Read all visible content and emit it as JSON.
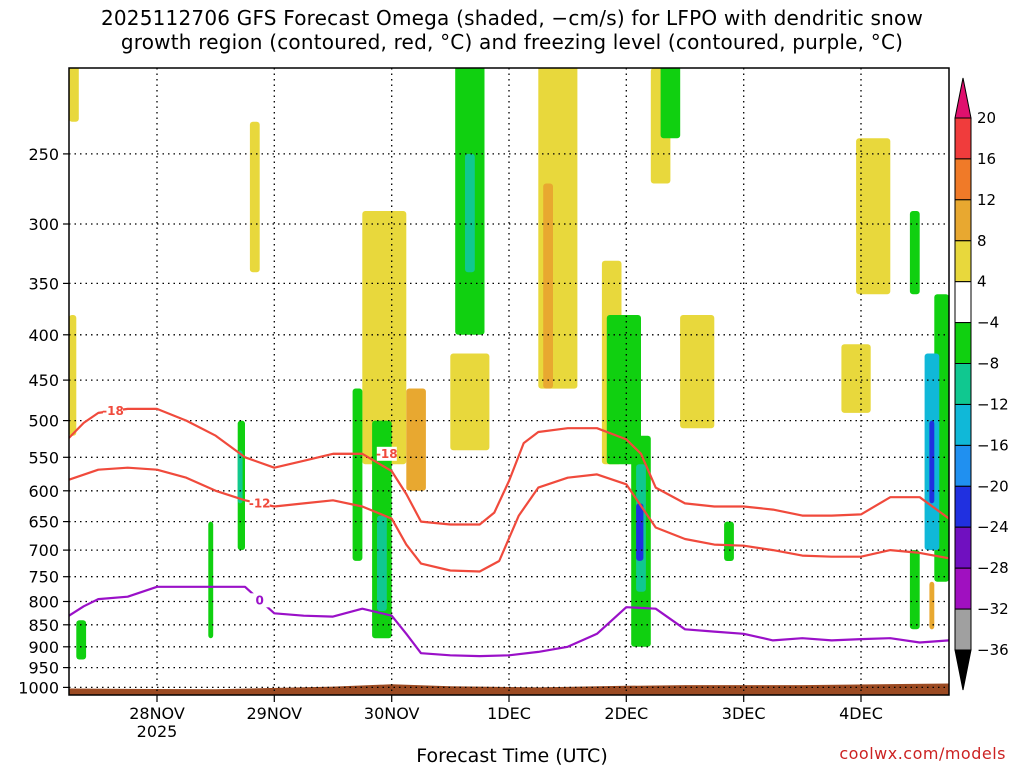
{
  "title_line1": "2025112706 GFS Forecast Omega (shaded, −cm/s) for LFPO with dendritic snow",
  "title_line2": "growth region (contoured, red, °C) and freezing level (contoured, purple, °C)",
  "credit": "coolwx.com/models",
  "colors": {
    "snow_contour": "#f04a3c",
    "freezing_contour": "#9a10c8",
    "ground": "#9b4a22",
    "grid": "#000000"
  },
  "chart_data": {
    "type": "heatmap",
    "title": "2025112706 GFS Forecast Omega (shaded, −cm/s) for LFPO with dendritic snow growth region (contoured, red, °C) and freezing level (contoured, purple, °C)",
    "xlabel": "Forecast Time (UTC)",
    "ylabel": "",
    "y_scale": "log",
    "y_reversed": true,
    "ylim": [
      1020,
      200
    ],
    "xlim": [
      "2025-11-27T06:00",
      "2025-12-04T18:00"
    ],
    "x_ticks": [
      {
        "time": "2025-11-28T00:00",
        "label": "28NOV",
        "sublabel": "2025"
      },
      {
        "time": "2025-11-29T00:00",
        "label": "29NOV"
      },
      {
        "time": "2025-11-30T00:00",
        "label": "30NOV"
      },
      {
        "time": "2025-12-01T00:00",
        "label": "1DEC"
      },
      {
        "time": "2025-12-02T00:00",
        "label": "2DEC"
      },
      {
        "time": "2025-12-03T00:00",
        "label": "3DEC"
      },
      {
        "time": "2025-12-04T00:00",
        "label": "4DEC"
      }
    ],
    "y_ticks": [
      250,
      300,
      350,
      400,
      450,
      500,
      550,
      600,
      650,
      700,
      750,
      800,
      850,
      900,
      950,
      1000
    ],
    "grid": "dotted",
    "colorbar": {
      "labels": [
        20,
        16,
        12,
        8,
        4,
        -4,
        -8,
        -12,
        -16,
        -20,
        -24,
        -28,
        -32,
        -36
      ],
      "bins": [
        {
          "range": [
            20,
            null
          ],
          "color": "#e0106e"
        },
        {
          "range": [
            16,
            20
          ],
          "color": "#f03c3c"
        },
        {
          "range": [
            12,
            16
          ],
          "color": "#f07a28"
        },
        {
          "range": [
            8,
            12
          ],
          "color": "#e8a830"
        },
        {
          "range": [
            4,
            8
          ],
          "color": "#e8d83c"
        },
        {
          "range": [
            -4,
            4
          ],
          "color": "#ffffff"
        },
        {
          "range": [
            -8,
            -4
          ],
          "color": "#10d010"
        },
        {
          "range": [
            -12,
            -8
          ],
          "color": "#10c890"
        },
        {
          "range": [
            -16,
            -12
          ],
          "color": "#10b8d8"
        },
        {
          "range": [
            -20,
            -16
          ],
          "color": "#2090f0"
        },
        {
          "range": [
            -24,
            -20
          ],
          "color": "#2030e0"
        },
        {
          "range": [
            -28,
            -24
          ],
          "color": "#7010c0"
        },
        {
          "range": [
            -32,
            -28
          ],
          "color": "#a010c0"
        },
        {
          "range": [
            -36,
            -32
          ],
          "color": "#a0a0a0"
        },
        {
          "range": [
            null,
            -36
          ],
          "color": "#000000"
        }
      ]
    },
    "omega_regions": [
      {
        "value": 5,
        "t0": "2025-11-27T06:00",
        "t1": "2025-11-27T07:30",
        "p0": 380,
        "p1": 520
      },
      {
        "value": 5,
        "t0": "2025-11-27T06:00",
        "t1": "2025-11-27T08:00",
        "p0": 195,
        "p1": 230
      },
      {
        "value": 5,
        "t0": "2025-11-28T19:00",
        "t1": "2025-11-28T21:00",
        "p0": 230,
        "p1": 340
      },
      {
        "value": 5,
        "t0": "2025-11-29T18:00",
        "t1": "2025-11-30T03:00",
        "p0": 290,
        "p1": 560
      },
      {
        "value": 10,
        "t0": "2025-11-30T03:00",
        "t1": "2025-11-30T07:00",
        "p0": 460,
        "p1": 600
      },
      {
        "value": 5,
        "t0": "2025-11-30T12:00",
        "t1": "2025-11-30T20:00",
        "p0": 420,
        "p1": 540
      },
      {
        "value": 5,
        "t0": "2025-12-01T06:00",
        "t1": "2025-12-01T14:00",
        "p0": 180,
        "p1": 460
      },
      {
        "value": 10,
        "t0": "2025-12-01T07:00",
        "t1": "2025-12-01T09:00",
        "p0": 270,
        "p1": 460
      },
      {
        "value": 5,
        "t0": "2025-12-01T19:00",
        "t1": "2025-12-01T23:00",
        "p0": 330,
        "p1": 560
      },
      {
        "value": 5,
        "t0": "2025-12-02T11:00",
        "t1": "2025-12-02T18:00",
        "p0": 380,
        "p1": 510
      },
      {
        "value": 5,
        "t0": "2025-12-02T05:00",
        "t1": "2025-12-02T09:00",
        "p0": 200,
        "p1": 270
      },
      {
        "value": 5,
        "t0": "2025-12-03T20:00",
        "t1": "2025-12-04T02:00",
        "p0": 410,
        "p1": 490
      },
      {
        "value": 5,
        "t0": "2025-12-03T23:00",
        "t1": "2025-12-04T06:00",
        "p0": 240,
        "p1": 360
      },
      {
        "value": 5,
        "t0": "2025-12-04T13:00",
        "t1": "2025-12-04T18:00",
        "p0": 540,
        "p1": 650
      },
      {
        "value": -6,
        "t0": "2025-11-27T07:30",
        "t1": "2025-11-27T09:30",
        "p0": 840,
        "p1": 930
      },
      {
        "value": -6,
        "t0": "2025-11-28T10:30",
        "t1": "2025-11-28T11:30",
        "p0": 650,
        "p1": 880
      },
      {
        "value": -6,
        "t0": "2025-11-28T16:30",
        "t1": "2025-11-28T18:00",
        "p0": 500,
        "p1": 700
      },
      {
        "value": -10,
        "t0": "2025-11-28T16:30",
        "t1": "2025-11-28T17:30",
        "p0": 540,
        "p1": 620
      },
      {
        "value": -6,
        "t0": "2025-11-29T16:00",
        "t1": "2025-11-29T18:00",
        "p0": 460,
        "p1": 720
      },
      {
        "value": -6,
        "t0": "2025-11-29T20:00",
        "t1": "2025-11-30T00:00",
        "p0": 500,
        "p1": 880
      },
      {
        "value": -10,
        "t0": "2025-11-29T21:00",
        "t1": "2025-11-29T23:00",
        "p0": 640,
        "p1": 820
      },
      {
        "value": -6,
        "t0": "2025-11-30T13:00",
        "t1": "2025-11-30T19:00",
        "p0": 185,
        "p1": 400
      },
      {
        "value": -10,
        "t0": "2025-11-30T15:00",
        "t1": "2025-11-30T17:00",
        "p0": 250,
        "p1": 340
      },
      {
        "value": -6,
        "t0": "2025-12-01T20:00",
        "t1": "2025-12-02T03:00",
        "p0": 380,
        "p1": 560
      },
      {
        "value": -6,
        "t0": "2025-12-02T01:00",
        "t1": "2025-12-02T05:00",
        "p0": 520,
        "p1": 900
      },
      {
        "value": -10,
        "t0": "2025-12-02T02:00",
        "t1": "2025-12-02T04:00",
        "p0": 560,
        "p1": 780
      },
      {
        "value": -22,
        "t0": "2025-12-02T02:00",
        "t1": "2025-12-02T03:30",
        "p0": 620,
        "p1": 720
      },
      {
        "value": -6,
        "t0": "2025-12-02T07:00",
        "t1": "2025-12-02T11:00",
        "p0": 195,
        "p1": 240
      },
      {
        "value": -6,
        "t0": "2025-12-02T20:00",
        "t1": "2025-12-02T22:00",
        "p0": 650,
        "p1": 720
      },
      {
        "value": -6,
        "t0": "2025-12-04T10:00",
        "t1": "2025-12-04T12:00",
        "p0": 290,
        "p1": 360
      },
      {
        "value": -6,
        "t0": "2025-12-04T15:00",
        "t1": "2025-12-04T18:00",
        "p0": 360,
        "p1": 760
      },
      {
        "value": -14,
        "t0": "2025-12-04T13:00",
        "t1": "2025-12-04T16:00",
        "p0": 420,
        "p1": 700
      },
      {
        "value": -22,
        "t0": "2025-12-04T14:00",
        "t1": "2025-12-04T15:00",
        "p0": 500,
        "p1": 620
      },
      {
        "value": -6,
        "t0": "2025-12-04T10:00",
        "t1": "2025-12-04T12:00",
        "p0": 700,
        "p1": 860
      },
      {
        "value": 10,
        "t0": "2025-12-04T14:00",
        "t1": "2025-12-04T15:00",
        "p0": 760,
        "p1": 860
      }
    ],
    "series": [
      {
        "label": "-18",
        "label_at": "2025-11-27T15:00",
        "color": "#f04a3c",
        "points": [
          [
            "2025-11-27T06:00",
            523
          ],
          [
            "2025-11-27T09:00",
            503
          ],
          [
            "2025-11-27T12:00",
            490
          ],
          [
            "2025-11-27T18:00",
            485
          ],
          [
            "2025-11-28T00:00",
            485
          ],
          [
            "2025-11-28T06:00",
            500
          ],
          [
            "2025-11-28T12:00",
            520
          ],
          [
            "2025-11-28T18:00",
            550
          ],
          [
            "2025-11-29T00:00",
            565
          ],
          [
            "2025-11-29T06:00",
            555
          ],
          [
            "2025-11-29T12:00",
            545
          ],
          [
            "2025-11-29T18:00",
            545
          ],
          [
            "2025-11-30T00:00",
            570
          ],
          [
            "2025-11-30T03:00",
            605
          ],
          [
            "2025-11-30T06:00",
            650
          ],
          [
            "2025-11-30T12:00",
            655
          ],
          [
            "2025-11-30T18:00",
            655
          ],
          [
            "2025-11-30T21:00",
            635
          ],
          [
            "2025-12-01T00:00",
            585
          ],
          [
            "2025-12-01T03:00",
            530
          ],
          [
            "2025-12-01T06:00",
            515
          ],
          [
            "2025-12-01T12:00",
            510
          ],
          [
            "2025-12-01T18:00",
            510
          ],
          [
            "2025-12-02T00:00",
            525
          ],
          [
            "2025-12-02T03:00",
            545
          ],
          [
            "2025-12-02T06:00",
            595
          ],
          [
            "2025-12-02T12:00",
            620
          ],
          [
            "2025-12-02T18:00",
            625
          ],
          [
            "2025-12-03T00:00",
            625
          ],
          [
            "2025-12-03T06:00",
            630
          ],
          [
            "2025-12-03T12:00",
            640
          ],
          [
            "2025-12-03T18:00",
            640
          ],
          [
            "2025-12-04T00:00",
            638
          ],
          [
            "2025-12-04T06:00",
            610
          ],
          [
            "2025-12-04T12:00",
            610
          ],
          [
            "2025-12-04T18:00",
            645
          ]
        ]
      },
      {
        "label": "-18",
        "label_at": "2025-11-29T23:00",
        "color": "#f04a3c",
        "points": [
          [
            "2025-11-29T12:00",
            545
          ],
          [
            "2025-11-29T18:00",
            545
          ]
        ]
      },
      {
        "label": "-12",
        "label_at": "2025-11-28T21:00",
        "color": "#f04a3c",
        "points": [
          [
            "2025-11-27T06:00",
            583
          ],
          [
            "2025-11-27T12:00",
            568
          ],
          [
            "2025-11-27T18:00",
            565
          ],
          [
            "2025-11-28T00:00",
            568
          ],
          [
            "2025-11-28T06:00",
            580
          ],
          [
            "2025-11-28T12:00",
            600
          ],
          [
            "2025-11-28T18:00",
            615
          ],
          [
            "2025-11-29T00:00",
            625
          ],
          [
            "2025-11-29T06:00",
            620
          ],
          [
            "2025-11-29T12:00",
            615
          ],
          [
            "2025-11-29T18:00",
            625
          ],
          [
            "2025-11-30T00:00",
            645
          ],
          [
            "2025-11-30T03:00",
            690
          ],
          [
            "2025-11-30T06:00",
            725
          ],
          [
            "2025-11-30T12:00",
            738
          ],
          [
            "2025-11-30T18:00",
            740
          ],
          [
            "2025-11-30T22:00",
            720
          ],
          [
            "2025-12-01T02:00",
            640
          ],
          [
            "2025-12-01T06:00",
            595
          ],
          [
            "2025-12-01T12:00",
            580
          ],
          [
            "2025-12-01T18:00",
            575
          ],
          [
            "2025-12-02T00:00",
            590
          ],
          [
            "2025-12-02T06:00",
            660
          ],
          [
            "2025-12-02T12:00",
            680
          ],
          [
            "2025-12-02T18:00",
            690
          ],
          [
            "2025-12-03T00:00",
            692
          ],
          [
            "2025-12-03T06:00",
            700
          ],
          [
            "2025-12-03T12:00",
            710
          ],
          [
            "2025-12-03T18:00",
            712
          ],
          [
            "2025-12-04T00:00",
            712
          ],
          [
            "2025-12-04T06:00",
            700
          ],
          [
            "2025-12-04T12:00",
            705
          ],
          [
            "2025-12-04T18:00",
            715
          ]
        ]
      },
      {
        "label": "0",
        "label_at": "2025-11-28T21:00",
        "color": "#9a10c8",
        "points": [
          [
            "2025-11-27T06:00",
            830
          ],
          [
            "2025-11-27T09:00",
            810
          ],
          [
            "2025-11-27T12:00",
            795
          ],
          [
            "2025-11-27T18:00",
            790
          ],
          [
            "2025-11-28T00:00",
            770
          ],
          [
            "2025-11-28T06:00",
            770
          ],
          [
            "2025-11-28T12:00",
            770
          ],
          [
            "2025-11-28T18:00",
            770
          ],
          [
            "2025-11-29T00:00",
            825
          ],
          [
            "2025-11-29T06:00",
            830
          ],
          [
            "2025-11-29T12:00",
            832
          ],
          [
            "2025-11-29T18:00",
            815
          ],
          [
            "2025-11-30T00:00",
            830
          ],
          [
            "2025-11-30T03:00",
            870
          ],
          [
            "2025-11-30T06:00",
            915
          ],
          [
            "2025-11-30T12:00",
            920
          ],
          [
            "2025-11-30T18:00",
            922
          ],
          [
            "2025-12-01T00:00",
            920
          ],
          [
            "2025-12-01T06:00",
            912
          ],
          [
            "2025-12-01T12:00",
            900
          ],
          [
            "2025-12-01T18:00",
            870
          ],
          [
            "2025-12-02T00:00",
            812
          ],
          [
            "2025-12-02T06:00",
            815
          ],
          [
            "2025-12-02T12:00",
            860
          ],
          [
            "2025-12-02T18:00",
            865
          ],
          [
            "2025-12-03T00:00",
            870
          ],
          [
            "2025-12-03T06:00",
            885
          ],
          [
            "2025-12-03T12:00",
            880
          ],
          [
            "2025-12-03T18:00",
            885
          ],
          [
            "2025-12-04T00:00",
            882
          ],
          [
            "2025-12-04T06:00",
            880
          ],
          [
            "2025-12-04T12:00",
            890
          ],
          [
            "2025-12-04T18:00",
            885
          ]
        ]
      }
    ],
    "ground": {
      "label": "",
      "points": [
        [
          "2025-11-27T06:00",
          1003
        ],
        [
          "2025-11-28T12:00",
          1005
        ],
        [
          "2025-11-29T12:00",
          998
        ],
        [
          "2025-11-30T00:00",
          992
        ],
        [
          "2025-11-30T12:00",
          997
        ],
        [
          "2025-12-01T06:00",
          1000
        ],
        [
          "2025-12-02T00:00",
          996
        ],
        [
          "2025-12-02T12:00",
          994
        ],
        [
          "2025-12-03T12:00",
          994
        ],
        [
          "2025-12-04T18:00",
          990
        ]
      ]
    }
  }
}
